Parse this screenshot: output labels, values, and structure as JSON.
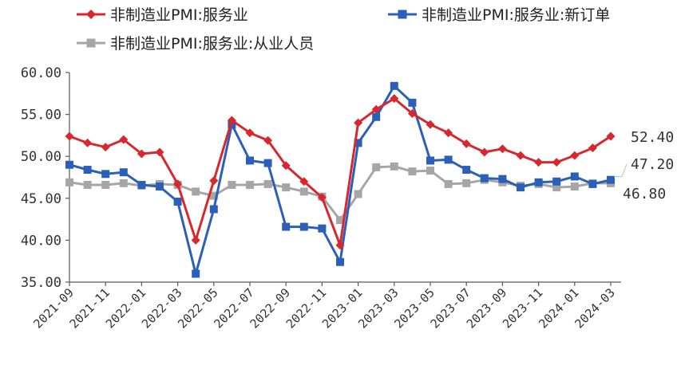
{
  "chart_data": {
    "type": "line",
    "title": "",
    "xlabel": "",
    "ylabel": "",
    "ylim": [
      35,
      60
    ],
    "y_ticks": [
      "35.00",
      "40.00",
      "45.00",
      "50.00",
      "55.00",
      "60.00"
    ],
    "x": [
      "2021-09",
      "2021-10",
      "2021-11",
      "2021-12",
      "2022-01",
      "2022-02",
      "2022-03",
      "2022-04",
      "2022-05",
      "2022-06",
      "2022-07",
      "2022-08",
      "2022-09",
      "2022-10",
      "2022-11",
      "2022-12",
      "2023-01",
      "2023-02",
      "2023-03",
      "2023-04",
      "2023-05",
      "2023-06",
      "2023-07",
      "2023-08",
      "2023-09",
      "2023-10",
      "2023-11",
      "2023-12",
      "2024-01",
      "2024-02",
      "2024-03"
    ],
    "x_tick_labels": [
      "2021-09",
      "2021-11",
      "2022-01",
      "2022-03",
      "2022-05",
      "2022-07",
      "2022-09",
      "2022-11",
      "2023-01",
      "2023-03",
      "2023-05",
      "2023-07",
      "2023-09",
      "2023-11",
      "2024-01",
      "2024-03"
    ],
    "legend_position": "top",
    "series": [
      {
        "name": "非制造业PMI:服务业",
        "color": "#d7282f",
        "marker": "diamond",
        "values": [
          52.4,
          51.6,
          51.1,
          52.0,
          50.3,
          50.5,
          46.7,
          40.0,
          47.1,
          54.3,
          52.8,
          51.9,
          48.9,
          47.0,
          45.1,
          39.4,
          54.0,
          55.6,
          56.9,
          55.1,
          53.8,
          52.8,
          51.5,
          50.5,
          50.9,
          50.1,
          49.3,
          49.3,
          50.1,
          51.0,
          52.4
        ],
        "end_label": "52.40"
      },
      {
        "name": "非制造业PMI:服务业:新订单",
        "color": "#2c5fb8",
        "marker": "square",
        "values": [
          49.0,
          48.4,
          47.9,
          48.1,
          46.6,
          46.4,
          44.6,
          36.0,
          43.7,
          53.8,
          49.5,
          49.2,
          41.6,
          41.6,
          41.4,
          37.4,
          51.6,
          54.7,
          58.4,
          56.4,
          49.5,
          49.6,
          48.4,
          47.4,
          47.3,
          46.3,
          46.9,
          47.0,
          47.6,
          46.7,
          47.2
        ],
        "end_label": "47.20"
      },
      {
        "name": "非制造业PMI:服务业:从业人员",
        "color": "#a6a6a6",
        "marker": "square",
        "values": [
          46.9,
          46.6,
          46.6,
          46.8,
          46.5,
          46.7,
          46.6,
          45.8,
          45.3,
          46.6,
          46.6,
          46.7,
          46.3,
          45.8,
          45.2,
          42.4,
          45.5,
          48.7,
          48.8,
          48.2,
          48.3,
          46.7,
          46.8,
          47.2,
          46.9,
          46.5,
          46.7,
          46.3,
          46.4,
          46.8,
          46.8
        ],
        "end_label": "46.80"
      }
    ]
  }
}
